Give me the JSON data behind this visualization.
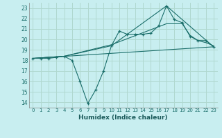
{
  "title": "",
  "xlabel": "Humidex (Indice chaleur)",
  "bg_color": "#c8eef0",
  "grid_color": "#b0d8d0",
  "line_color": "#1a6e6a",
  "xlim": [
    -0.5,
    23.5
  ],
  "ylim": [
    13.5,
    23.5
  ],
  "yticks": [
    14,
    15,
    16,
    17,
    18,
    19,
    20,
    21,
    22,
    23
  ],
  "xticks": [
    0,
    1,
    2,
    3,
    4,
    5,
    6,
    7,
    8,
    9,
    10,
    11,
    12,
    13,
    14,
    15,
    16,
    17,
    18,
    19,
    20,
    21,
    22,
    23
  ],
  "series1_x": [
    0,
    1,
    2,
    3,
    4,
    5,
    6,
    7,
    8,
    9,
    10,
    11,
    12,
    13,
    14,
    15,
    16,
    17,
    18,
    19,
    20,
    21,
    22,
    23
  ],
  "series1_y": [
    18.2,
    18.2,
    18.2,
    18.3,
    18.4,
    18.0,
    16.0,
    13.9,
    15.2,
    17.0,
    19.4,
    20.8,
    20.5,
    20.5,
    20.5,
    20.6,
    21.3,
    23.2,
    21.9,
    21.6,
    20.3,
    19.9,
    19.9,
    19.3
  ],
  "series2_x": [
    0,
    4,
    10,
    17,
    23
  ],
  "series2_y": [
    18.2,
    18.4,
    19.4,
    23.2,
    19.3
  ],
  "series3_x": [
    0,
    4,
    10,
    17,
    18,
    19,
    20,
    21,
    22,
    23
  ],
  "series3_y": [
    18.2,
    18.4,
    19.5,
    21.5,
    21.5,
    21.5,
    20.4,
    19.9,
    19.7,
    19.4
  ],
  "series4_x": [
    0,
    23
  ],
  "series4_y": [
    18.2,
    19.3
  ]
}
